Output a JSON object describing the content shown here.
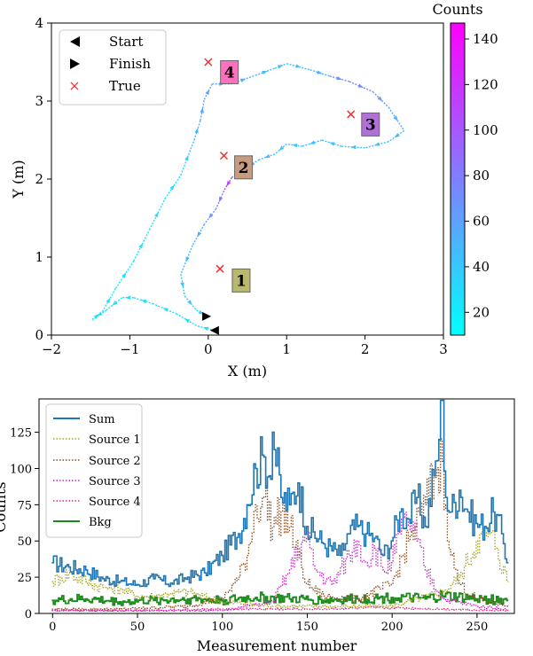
{
  "colors": {
    "cbar_low": "#00ffff",
    "cbar_high": "#ff00ff",
    "true_marker": "#ee3333",
    "sum": "#1f77b4",
    "source1": "#a5a51f",
    "source2": "#8b4a1e",
    "source3": "#cc22cc",
    "source4": "#ee2288",
    "bkg": "#1a8a1a"
  },
  "chart_data": [
    {
      "type": "scatter",
      "xlabel": "X (m)",
      "ylabel": "Y (m)",
      "xlim": [
        -2,
        3
      ],
      "ylim": [
        0,
        4
      ],
      "xticks": [
        "−2",
        "−1",
        "0",
        "1",
        "2",
        "3"
      ],
      "yticks": [
        "0",
        "1",
        "2",
        "3",
        "4"
      ],
      "grid": false,
      "legend_position": "top-left",
      "legend": [
        {
          "key": "start",
          "label": "Start"
        },
        {
          "key": "finish",
          "label": "Finish"
        },
        {
          "key": "true",
          "label": "True"
        }
      ],
      "colorbar": {
        "label": "Counts",
        "range": [
          10,
          147
        ],
        "ticks": [
          "20",
          "40",
          "60",
          "80",
          "100",
          "120",
          "140"
        ]
      },
      "start_point": {
        "x": 0.08,
        "y": 0.06
      },
      "finish_point": {
        "x": -0.02,
        "y": 0.24
      },
      "true_sources": [
        {
          "x": 0.15,
          "y": 0.85
        },
        {
          "x": 0.2,
          "y": 2.3
        },
        {
          "x": 1.82,
          "y": 2.83
        },
        {
          "x": 0.0,
          "y": 3.5
        }
      ],
      "estimated_sources": [
        {
          "label": "1",
          "x": 0.42,
          "y": 0.7,
          "color": "#b8b870"
        },
        {
          "label": "2",
          "x": 0.45,
          "y": 2.15,
          "color": "#c89a7e"
        },
        {
          "label": "3",
          "x": 2.07,
          "y": 2.7,
          "color": "#b070d8"
        },
        {
          "label": "4",
          "x": 0.27,
          "y": 3.37,
          "color": "#ff70c0"
        }
      ],
      "trajectory": [
        {
          "x": 0.08,
          "y": 0.06,
          "c": 30
        },
        {
          "x": -0.15,
          "y": 0.12,
          "c": 28
        },
        {
          "x": -0.4,
          "y": 0.27,
          "c": 30
        },
        {
          "x": -0.7,
          "y": 0.4,
          "c": 32
        },
        {
          "x": -0.95,
          "y": 0.48,
          "c": 30
        },
        {
          "x": -1.1,
          "y": 0.48,
          "c": 28
        },
        {
          "x": -1.3,
          "y": 0.32,
          "c": 26
        },
        {
          "x": -1.48,
          "y": 0.2,
          "c": 24
        },
        {
          "x": -1.35,
          "y": 0.3,
          "c": 24
        },
        {
          "x": -1.18,
          "y": 0.6,
          "c": 25
        },
        {
          "x": -0.95,
          "y": 0.95,
          "c": 25
        },
        {
          "x": -0.75,
          "y": 1.35,
          "c": 26
        },
        {
          "x": -0.55,
          "y": 1.75,
          "c": 28
        },
        {
          "x": -0.35,
          "y": 2.05,
          "c": 30
        },
        {
          "x": -0.18,
          "y": 2.5,
          "c": 40
        },
        {
          "x": -0.1,
          "y": 2.75,
          "c": 55
        },
        {
          "x": -0.05,
          "y": 3.02,
          "c": 65
        },
        {
          "x": 0.05,
          "y": 3.22,
          "c": 60
        },
        {
          "x": 0.3,
          "y": 3.22,
          "c": 55
        },
        {
          "x": 0.6,
          "y": 3.33,
          "c": 50
        },
        {
          "x": 0.85,
          "y": 3.42,
          "c": 45
        },
        {
          "x": 1.0,
          "y": 3.48,
          "c": 40
        },
        {
          "x": 1.3,
          "y": 3.4,
          "c": 45
        },
        {
          "x": 1.55,
          "y": 3.32,
          "c": 60
        },
        {
          "x": 1.8,
          "y": 3.25,
          "c": 75
        },
        {
          "x": 2.1,
          "y": 3.12,
          "c": 70
        },
        {
          "x": 2.3,
          "y": 2.92,
          "c": 60
        },
        {
          "x": 2.5,
          "y": 2.62,
          "c": 50
        },
        {
          "x": 2.3,
          "y": 2.48,
          "c": 45
        },
        {
          "x": 2.0,
          "y": 2.4,
          "c": 45
        },
        {
          "x": 1.7,
          "y": 2.42,
          "c": 45
        },
        {
          "x": 1.45,
          "y": 2.5,
          "c": 42
        },
        {
          "x": 1.2,
          "y": 2.42,
          "c": 42
        },
        {
          "x": 1.0,
          "y": 2.45,
          "c": 40
        },
        {
          "x": 0.85,
          "y": 2.32,
          "c": 42
        },
        {
          "x": 0.65,
          "y": 2.25,
          "c": 48
        },
        {
          "x": 0.45,
          "y": 2.12,
          "c": 60
        },
        {
          "x": 0.3,
          "y": 2.02,
          "c": 130
        },
        {
          "x": 0.2,
          "y": 1.85,
          "c": 90
        },
        {
          "x": 0.1,
          "y": 1.62,
          "c": 70
        },
        {
          "x": -0.05,
          "y": 1.42,
          "c": 55
        },
        {
          "x": -0.2,
          "y": 1.15,
          "c": 50
        },
        {
          "x": -0.35,
          "y": 0.78,
          "c": 45
        },
        {
          "x": -0.3,
          "y": 0.5,
          "c": 40
        },
        {
          "x": -0.15,
          "y": 0.32,
          "c": 35
        },
        {
          "x": -0.02,
          "y": 0.24,
          "c": 30
        }
      ]
    },
    {
      "type": "line",
      "xlabel": "Measurement number",
      "ylabel": "Counts",
      "xlim": [
        -8,
        272
      ],
      "ylim": [
        0,
        148
      ],
      "xticks": [
        "0",
        "50",
        "100",
        "150",
        "200",
        "250"
      ],
      "yticks": [
        "0",
        "25",
        "50",
        "75",
        "100",
        "125"
      ],
      "grid": false,
      "legend_position": "top-left",
      "series": [
        {
          "name": "Sum",
          "style": "solid",
          "x": [
            0,
            10,
            20,
            30,
            40,
            50,
            60,
            70,
            80,
            90,
            100,
            110,
            115,
            120,
            125,
            128,
            130,
            135,
            140,
            145,
            150,
            160,
            170,
            175,
            180,
            185,
            190,
            195,
            200,
            205,
            210,
            215,
            220,
            225,
            228,
            230,
            232,
            235,
            240,
            245,
            250,
            255,
            260,
            265,
            268
          ],
          "y": [
            35,
            32,
            30,
            24,
            22,
            20,
            24,
            21,
            25,
            28,
            40,
            55,
            75,
            100,
            108,
            95,
            125,
            80,
            75,
            90,
            60,
            48,
            40,
            55,
            60,
            55,
            52,
            40,
            50,
            70,
            65,
            80,
            60,
            95,
            120,
            147,
            80,
            70,
            85,
            70,
            62,
            60,
            70,
            55,
            35
          ]
        },
        {
          "name": "Source 1",
          "style": "dotted",
          "x": [
            0,
            5,
            10,
            20,
            30,
            40,
            50,
            60,
            70,
            80,
            100,
            130,
            160,
            200,
            230,
            240,
            250,
            258,
            262,
            268
          ],
          "y": [
            22,
            25,
            28,
            22,
            18,
            17,
            12,
            12,
            14,
            15,
            8,
            5,
            5,
            5,
            15,
            25,
            50,
            55,
            45,
            22
          ]
        },
        {
          "name": "Source 2",
          "style": "dotted",
          "x": [
            0,
            40,
            80,
            100,
            110,
            115,
            120,
            125,
            130,
            135,
            140,
            145,
            150,
            160,
            180,
            200,
            210,
            220,
            225,
            230,
            232,
            235,
            240,
            250,
            268
          ],
          "y": [
            3,
            3,
            5,
            10,
            25,
            40,
            75,
            80,
            60,
            70,
            60,
            40,
            20,
            12,
            10,
            20,
            50,
            75,
            95,
            105,
            75,
            40,
            20,
            10,
            5
          ]
        },
        {
          "name": "Source 3",
          "style": "dotted",
          "x": [
            0,
            100,
            130,
            140,
            145,
            150,
            155,
            165,
            175,
            180,
            185,
            190,
            195,
            200,
            205,
            210,
            215,
            220,
            230,
            250,
            268
          ],
          "y": [
            2,
            2,
            8,
            30,
            45,
            52,
            30,
            20,
            40,
            50,
            35,
            45,
            30,
            35,
            55,
            65,
            50,
            30,
            10,
            5,
            3
          ]
        },
        {
          "name": "Source 4",
          "style": "dotted",
          "x": [
            0,
            50,
            100,
            150,
            200,
            230,
            268
          ],
          "y": [
            2,
            2,
            3,
            3,
            4,
            3,
            2
          ]
        },
        {
          "name": "Bkg",
          "style": "solid",
          "x": [
            0,
            20,
            40,
            60,
            80,
            100,
            120,
            140,
            160,
            180,
            200,
            220,
            230,
            250,
            268
          ],
          "y": [
            9,
            10,
            8,
            9,
            10,
            9,
            11,
            10,
            9,
            10,
            11,
            10,
            12,
            10,
            9
          ]
        }
      ]
    }
  ]
}
